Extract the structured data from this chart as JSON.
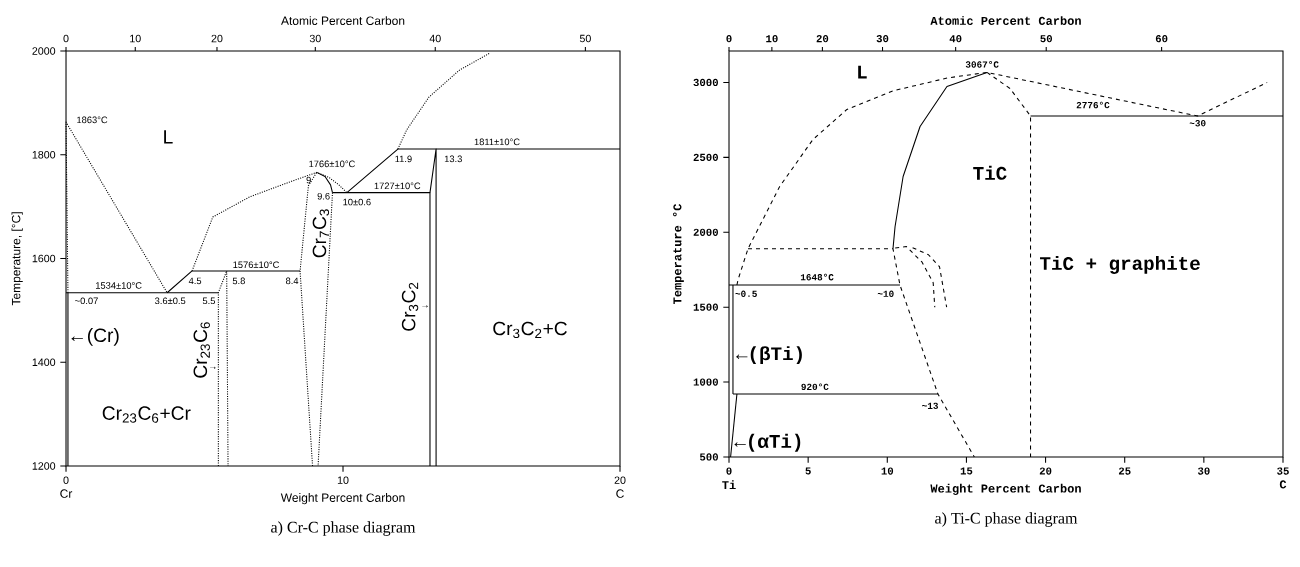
{
  "chart_data": [
    {
      "type": "line",
      "title": "a) Cr-C phase diagram",
      "xlabel": "Weight Percent Carbon",
      "ylabel": "Temperature, [°C]",
      "x2label": "Atomic Percent Carbon",
      "xlim": [
        0,
        20
      ],
      "ylim": [
        1200,
        2000
      ],
      "xticks": [
        0,
        10,
        20
      ],
      "yticks": [
        1200,
        1400,
        1600,
        1800,
        2000
      ],
      "series": [
        {
          "color": "#000000",
          "line_style": "dotted",
          "x": [
            0.07,
            0,
            3.65
          ],
          "values": [
            1534,
            1863,
            1534
          ]
        },
        {
          "color": "#000000",
          "line_style": "solid",
          "x": [
            0,
            5.5
          ],
          "values": [
            1534,
            1534
          ]
        },
        {
          "color": "#000000",
          "line_style": "solid",
          "x": [
            3.65,
            4.55,
            8.45
          ],
          "values": [
            1534,
            1576,
            1576
          ]
        },
        {
          "color": "#000000",
          "line_style": "dotted",
          "x": [
            4.55,
            5.3,
            6.64,
            8.1,
            9.05,
            9.5,
            9.85,
            10.14
          ],
          "values": [
            1576,
            1680,
            1719,
            1748,
            1766,
            1756,
            1742,
            1727
          ]
        },
        {
          "color": "#000000",
          "line_style": "dotted",
          "x": [
            5.5,
            5.5,
            5.8,
            5.85
          ],
          "values": [
            1200,
            1534,
            1576,
            1200
          ]
        },
        {
          "color": "#000000",
          "line_style": "dotted",
          "x": [
            8.9,
            8.45,
            8.75,
            9.05
          ],
          "values": [
            1200,
            1576,
            1740,
            1766
          ]
        },
        {
          "color": "#000000",
          "line_style": "solid",
          "x": [
            9.05,
            9.35,
            9.55,
            9.62
          ],
          "values": [
            1766,
            1758,
            1742,
            1727
          ]
        },
        {
          "color": "#000000",
          "line_style": "dotted",
          "x": [
            9.62,
            9.1
          ],
          "values": [
            1727,
            1200
          ]
        },
        {
          "color": "#000000",
          "line_style": "solid",
          "x": [
            9.62,
            13.14,
            13.14
          ],
          "values": [
            1727,
            1727,
            1200
          ]
        },
        {
          "color": "#000000",
          "line_style": "solid",
          "x": [
            10.14,
            11.98,
            13.36,
            20
          ],
          "values": [
            1727,
            1811,
            1811,
            1811
          ]
        },
        {
          "color": "#000000",
          "line_style": "solid",
          "x": [
            13.14,
            13.36,
            13.36
          ],
          "values": [
            1727,
            1811,
            1200
          ]
        },
        {
          "color": "#000000",
          "line_style": "dotted",
          "x": [
            11.98,
            12.3,
            13.1,
            14.2,
            15.3
          ],
          "values": [
            1811,
            1848,
            1911,
            1963,
            1996
          ]
        },
        {
          "color": "#000000",
          "line_style": "solid",
          "x": [
            0.07,
            0.07
          ],
          "values": [
            1200,
            1534
          ]
        }
      ],
      "annotations": [
        "1863°C",
        "L",
        "1534±10°C",
        "~0.07",
        "3.6±0.5",
        "4.5",
        "5.5",
        "5.8",
        "1576±10°C",
        "8.4",
        "1766±10°C",
        "9",
        "9.6",
        "10±0.6",
        "1727±10°C",
        "11.9",
        "13.3",
        "1811±10°C",
        "←(Cr)",
        "Cr$_{23}$C$_{6}$",
        "→",
        "Cr$_{23}$C$_{6}$+Cr",
        "Cr$_{7}$C$_{3}$",
        "Cr$_{3}$C$_{2}$",
        "→",
        "Cr$_{3}$C$_{2}$+C",
        "Cr",
        "C",
        "0",
        "10",
        "20",
        "30",
        "40",
        "50"
      ]
    },
    {
      "type": "line",
      "title": "a) Ti-C phase diagram",
      "xlabel": "Weight Percent Carbon",
      "ylabel": "Temperature °C",
      "x2label": "Atomic Percent Carbon",
      "xlim": [
        0,
        35
      ],
      "ylim": [
        500,
        3210
      ],
      "xticks": [
        0,
        5,
        10,
        15,
        20,
        25,
        30,
        35
      ],
      "yticks": [
        500,
        1000,
        1500,
        2000,
        2500,
        3000
      ],
      "series": [
        {
          "color": "#000000",
          "line_style": "dashed",
          "x": [
            0.5,
            0.57,
            1.2,
            3.2,
            5.3,
            7.45,
            10.4,
            13.8,
            16.3,
            29.6,
            34.0
          ],
          "values": [
            1648,
            1683,
            1890,
            2305,
            2619,
            2820,
            2945,
            3030,
            3067,
            2776,
            3000
          ]
        },
        {
          "color": "#000000",
          "line_style": "dashed",
          "x": [
            16.3,
            17.75,
            19.05,
            19.05
          ],
          "values": [
            3067,
            2960,
            2776,
            500
          ]
        },
        {
          "color": "#000000",
          "line_style": "solid",
          "x": [
            19.05,
            35
          ],
          "values": [
            2776,
            2776
          ]
        },
        {
          "color": "#000000",
          "line_style": "solid",
          "x": [
            16.3,
            13.77,
            12.07,
            11.0,
            10.49,
            10.36
          ],
          "values": [
            3067,
            2973,
            2706,
            2372,
            2037,
            1890
          ]
        },
        {
          "color": "#000000",
          "line_style": "dashed",
          "x": [
            1.2,
            10.36,
            10.8,
            13.2,
            15.5
          ],
          "values": [
            1890,
            1890,
            1648,
            920,
            500
          ]
        },
        {
          "color": "#000000",
          "line_style": "dashed",
          "x": [
            10.5,
            11.2,
            12.2,
            12.9,
            13.0
          ],
          "values": [
            1895,
            1905,
            1800,
            1663,
            1500
          ]
        },
        {
          "color": "#000000",
          "line_style": "dashed",
          "x": [
            11.6,
            12.6,
            13.3,
            13.75
          ],
          "values": [
            1897,
            1850,
            1770,
            1500
          ]
        },
        {
          "color": "#000000",
          "line_style": "solid",
          "x": [
            0,
            10.8
          ],
          "values": [
            1648,
            1648
          ]
        },
        {
          "color": "#000000",
          "line_style": "solid",
          "x": [
            0.25,
            13.2
          ],
          "values": [
            920,
            920
          ]
        },
        {
          "color": "#000000",
          "line_style": "solid",
          "x": [
            0.25,
            0.25
          ],
          "values": [
            920,
            1648
          ]
        },
        {
          "color": "#000000",
          "line_style": "solid",
          "x": [
            0.5,
            0.1
          ],
          "values": [
            920,
            500
          ]
        }
      ],
      "annotations": [
        "L",
        "3067°C",
        "2776°C",
        "~30",
        "TiC",
        "TiC + graphite",
        "1648°C",
        "~0.5",
        "~10",
        "←(βTi)",
        "920°C",
        "~13",
        "←(αTi)",
        "Ti",
        "C",
        "0",
        "10",
        "20",
        "30",
        "40",
        "50",
        "60"
      ]
    }
  ]
}
